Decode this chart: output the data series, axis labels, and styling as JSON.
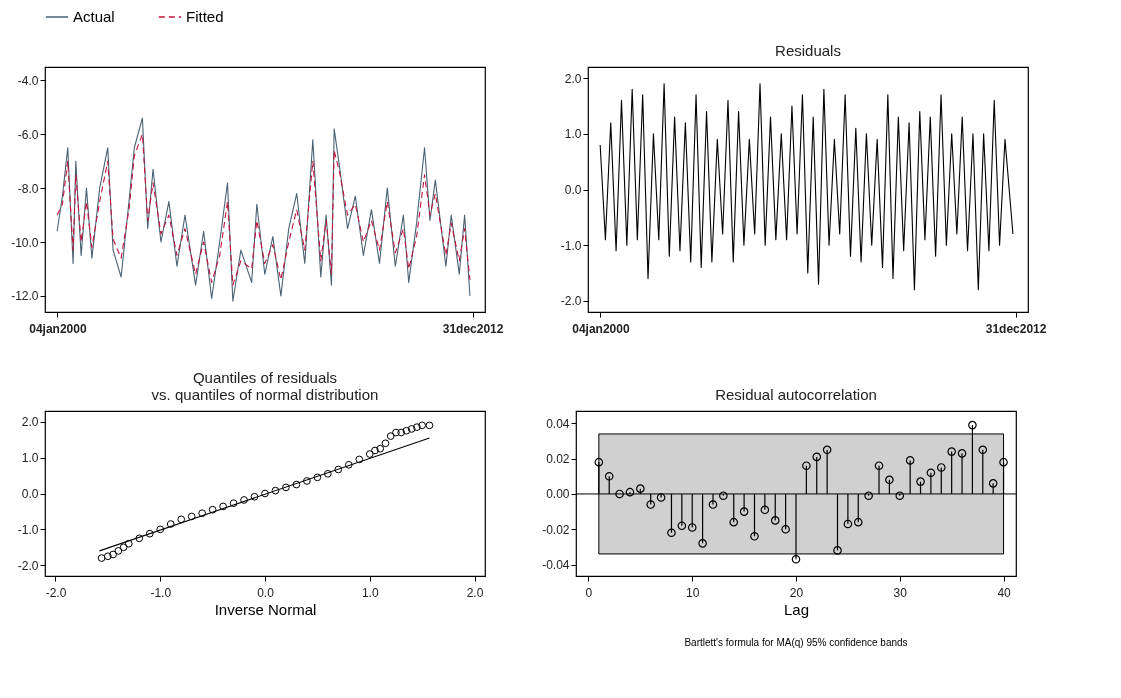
{
  "chart_data": [
    {
      "type": "line",
      "legend": "top",
      "grid": false,
      "xlim": [
        "1999-08-15",
        "2013-05-22"
      ],
      "xticks": [
        {
          "value": "2000-01-04",
          "label": "04jan2000"
        },
        {
          "value": "2012-12-31",
          "label": "31dec2012"
        }
      ],
      "ylim": [
        -12.6,
        -3.5
      ],
      "yticks": [
        {
          "value": -12,
          "label": "-12.0"
        },
        {
          "value": -10,
          "label": "-10.0"
        },
        {
          "value": -8,
          "label": "-8.0"
        },
        {
          "value": -6,
          "label": "-6.0"
        },
        {
          "value": -4,
          "label": "-4.0"
        }
      ],
      "x": [
        "2000-01",
        "2000-03",
        "2000-05",
        "2000-07",
        "2000-08",
        "2000-10",
        "2000-12",
        "2001-02",
        "2001-05",
        "2001-08",
        "2001-10",
        "2002-01",
        "2002-04",
        "2002-06",
        "2002-09",
        "2002-11",
        "2003-01",
        "2003-04",
        "2003-07",
        "2003-10",
        "2004-01",
        "2004-05",
        "2004-08",
        "2004-11",
        "2005-02",
        "2005-05",
        "2005-07",
        "2005-10",
        "2006-02",
        "2006-04",
        "2006-07",
        "2006-10",
        "2007-01",
        "2007-04",
        "2007-07",
        "2007-10",
        "2008-01",
        "2008-04",
        "2008-06",
        "2008-08",
        "2008-09",
        "2008-11",
        "2009-02",
        "2009-05",
        "2009-08",
        "2009-11",
        "2010-02",
        "2010-05",
        "2010-08",
        "2010-11",
        "2011-01",
        "2011-04",
        "2011-07",
        "2011-09",
        "2011-11",
        "2012-03",
        "2012-05",
        "2012-08",
        "2012-10",
        "2012-12"
      ],
      "series": [
        {
          "name": "Actual",
          "color": "#4b6273",
          "line_style": "solid",
          "values": [
            -9.6,
            -8.3,
            -6.5,
            -10.8,
            -7.0,
            -10.5,
            -8.0,
            -10.6,
            -8.0,
            -6.5,
            -10.3,
            -11.3,
            -8.5,
            -6.5,
            -5.4,
            -9.5,
            -7.3,
            -10.0,
            -8.5,
            -10.9,
            -9.0,
            -11.6,
            -9.6,
            -12.1,
            -10.0,
            -7.8,
            -12.2,
            -10.3,
            -11.5,
            -8.6,
            -11.2,
            -9.8,
            -12.0,
            -9.5,
            -8.2,
            -10.8,
            -6.2,
            -11.3,
            -9.0,
            -11.6,
            -5.8,
            -7.2,
            -9.5,
            -8.3,
            -10.5,
            -8.8,
            -10.8,
            -8.0,
            -10.9,
            -9.0,
            -11.5,
            -9.3,
            -6.5,
            -9.2,
            -7.7,
            -10.9,
            -9.0,
            -11.2,
            -9.0,
            -12.0
          ]
        },
        {
          "name": "Fitted",
          "color": "#c0143c",
          "line_style": "dashed",
          "values": [
            -9.0,
            -8.6,
            -7.0,
            -10.3,
            -7.5,
            -10.0,
            -8.5,
            -10.2,
            -8.5,
            -7.0,
            -9.9,
            -10.6,
            -8.8,
            -6.8,
            -6.0,
            -9.2,
            -7.8,
            -9.7,
            -9.0,
            -10.5,
            -9.5,
            -11.2,
            -10.0,
            -11.5,
            -10.5,
            -8.5,
            -11.6,
            -10.7,
            -11.0,
            -9.2,
            -10.8,
            -10.1,
            -11.4,
            -10.0,
            -8.8,
            -10.3,
            -7.0,
            -10.7,
            -9.2,
            -11.2,
            -6.6,
            -7.4,
            -9.0,
            -8.6,
            -10.0,
            -9.2,
            -10.3,
            -8.5,
            -10.4,
            -9.5,
            -11.0,
            -9.8,
            -7.5,
            -9.0,
            -8.2,
            -10.5,
            -9.3,
            -10.7,
            -9.5,
            -11.4
          ]
        }
      ]
    },
    {
      "type": "line",
      "title": "Residuals",
      "grid": false,
      "xlim": [
        "1999-08-15",
        "2013-05-22"
      ],
      "xticks": [
        {
          "value": "2000-01-04",
          "label": "04jan2000"
        },
        {
          "value": "2012-12-31",
          "label": "31dec2012"
        }
      ],
      "ylim": [
        -2.2,
        2.2
      ],
      "yticks": [
        {
          "value": -2,
          "label": "-2.0"
        },
        {
          "value": -1,
          "label": "-1.0"
        },
        {
          "value": 0,
          "label": "0.0"
        },
        {
          "value": 1,
          "label": "1.0"
        },
        {
          "value": 2,
          "label": "2.0"
        }
      ],
      "x": [
        "2000-01",
        "2000-03",
        "2000-05",
        "2000-07",
        "2000-09",
        "2000-11",
        "2001-01",
        "2001-03",
        "2001-05",
        "2001-07",
        "2001-09",
        "2001-11",
        "2002-01",
        "2002-03",
        "2002-05",
        "2002-07",
        "2002-09",
        "2002-11",
        "2003-01",
        "2003-03",
        "2003-05",
        "2003-07",
        "2003-09",
        "2003-11",
        "2004-01",
        "2004-03",
        "2004-05",
        "2004-07",
        "2004-09",
        "2004-11",
        "2005-01",
        "2005-03",
        "2005-05",
        "2005-07",
        "2005-09",
        "2005-11",
        "2006-01",
        "2006-03",
        "2006-05",
        "2006-07",
        "2006-09",
        "2006-11",
        "2007-01",
        "2007-03",
        "2007-05",
        "2007-07",
        "2007-09",
        "2007-11",
        "2008-01",
        "2008-03",
        "2008-05",
        "2008-07",
        "2008-09",
        "2008-11",
        "2009-01",
        "2009-03",
        "2009-05",
        "2009-07",
        "2009-09",
        "2009-11",
        "2010-01",
        "2010-03",
        "2010-05",
        "2010-07",
        "2010-09",
        "2010-11",
        "2011-01",
        "2011-03",
        "2011-05",
        "2011-07",
        "2011-09",
        "2011-11",
        "2012-01",
        "2012-03",
        "2012-05",
        "2012-07",
        "2012-09",
        "2012-12"
      ],
      "series": [
        {
          "color": "#000000",
          "values": [
            0.8,
            -0.9,
            1.2,
            -1.1,
            1.6,
            -1.0,
            1.8,
            -0.9,
            1.7,
            -1.6,
            1.0,
            -0.9,
            1.9,
            -1.2,
            1.3,
            -1.1,
            1.2,
            -1.3,
            1.7,
            -1.4,
            1.4,
            -1.3,
            0.9,
            -0.8,
            1.6,
            -1.3,
            1.4,
            -1.0,
            0.9,
            -0.8,
            1.9,
            -1.0,
            1.3,
            -0.9,
            1.0,
            -0.9,
            1.5,
            -0.8,
            1.7,
            -1.5,
            1.3,
            -1.7,
            1.8,
            -1.0,
            0.9,
            -0.8,
            1.7,
            -1.2,
            1.1,
            -1.3,
            1.0,
            -1.0,
            0.9,
            -1.4,
            1.7,
            -1.6,
            1.3,
            -1.1,
            1.2,
            -1.8,
            1.4,
            -0.9,
            1.3,
            -1.2,
            1.7,
            -1.0,
            1.0,
            -0.8,
            1.3,
            -1.1,
            1.0,
            -1.8,
            1.0,
            -1.1,
            1.6,
            -1.0,
            0.9,
            -0.8
          ]
        }
      ]
    },
    {
      "type": "scatter",
      "title": "Quantiles of residuals\nvs. quantiles of normal distribution",
      "xlabel": "Inverse Normal",
      "grid": false,
      "xlim": [
        -2.1,
        2.1
      ],
      "xticks": [
        {
          "value": -2,
          "label": "-2.0"
        },
        {
          "value": -1,
          "label": "-1.0"
        },
        {
          "value": 0,
          "label": "0.0"
        },
        {
          "value": 1,
          "label": "1.0"
        },
        {
          "value": 2,
          "label": "2.0"
        }
      ],
      "ylim": [
        -2.3,
        2.3
      ],
      "yticks": [
        {
          "value": -2,
          "label": "-2.0"
        },
        {
          "value": -1,
          "label": "-1.0"
        },
        {
          "value": 0,
          "label": "0.0"
        },
        {
          "value": 1,
          "label": "1.0"
        },
        {
          "value": 2,
          "label": "2.0"
        }
      ],
      "series": [
        {
          "type": "scatter",
          "color": "#000000",
          "marker": "circle",
          "x": [
            -1.56,
            -1.5,
            -1.45,
            -1.4,
            -1.35,
            -1.3,
            -1.2,
            -1.1,
            -1.0,
            -0.9,
            -0.8,
            -0.7,
            -0.6,
            -0.5,
            -0.4,
            -0.3,
            -0.2,
            -0.1,
            0.0,
            0.1,
            0.2,
            0.3,
            0.4,
            0.5,
            0.6,
            0.7,
            0.8,
            0.9,
            1.0,
            1.05,
            1.1,
            1.15,
            1.2,
            1.25,
            1.3,
            1.35,
            1.4,
            1.45,
            1.5,
            1.57
          ],
          "values": [
            -1.8,
            -1.75,
            -1.7,
            -1.6,
            -1.5,
            -1.4,
            -1.25,
            -1.12,
            -1.0,
            -0.85,
            -0.72,
            -0.64,
            -0.55,
            -0.45,
            -0.36,
            -0.27,
            -0.18,
            -0.09,
            0.0,
            0.08,
            0.17,
            0.25,
            0.35,
            0.45,
            0.55,
            0.67,
            0.8,
            0.95,
            1.1,
            1.2,
            1.25,
            1.4,
            1.6,
            1.7,
            1.7,
            1.75,
            1.8,
            1.85,
            1.9,
            1.9
          ]
        },
        {
          "type": "line",
          "color": "#000000",
          "marker": "none",
          "x": [
            -1.58,
            1.57
          ],
          "values": [
            -1.6,
            1.55
          ]
        }
      ]
    },
    {
      "type": "lollipop",
      "title": "Residual autocorrelation",
      "xlabel": "Lag",
      "grid": false,
      "marker": "circle",
      "xlim": [
        -1.2,
        41.2
      ],
      "xticks": [
        0,
        10,
        20,
        30,
        40
      ],
      "ylim": [
        -0.0465,
        0.047
      ],
      "yticks": [
        -0.04,
        -0.02,
        {
          "value": 0,
          "label": "0.00"
        },
        0.02,
        0.04
      ],
      "bands": [
        {
          "axis": "y",
          "from": -0.034,
          "to": 0.034,
          "color": "#d0d0d0"
        }
      ],
      "ref_lines": [
        {
          "axis": "y",
          "value": 0
        }
      ],
      "annotations": [
        "Bartlett's formula for MA(q) 95% confidence bands"
      ],
      "x": [
        1,
        2,
        3,
        4,
        5,
        6,
        7,
        8,
        9,
        10,
        11,
        12,
        13,
        14,
        15,
        16,
        17,
        18,
        19,
        20,
        21,
        22,
        23,
        24,
        25,
        26,
        27,
        28,
        29,
        30,
        31,
        32,
        33,
        34,
        35,
        36,
        37,
        38,
        39,
        40
      ],
      "series": [
        {
          "color": "#000000",
          "values": [
            0.018,
            0.01,
            0.0,
            0.001,
            0.003,
            -0.006,
            -0.002,
            -0.022,
            -0.018,
            -0.019,
            -0.028,
            -0.006,
            -0.001,
            -0.016,
            -0.01,
            -0.024,
            -0.009,
            -0.015,
            -0.02,
            -0.037,
            0.016,
            0.021,
            0.025,
            -0.032,
            -0.017,
            -0.016,
            -0.001,
            0.016,
            0.008,
            -0.001,
            0.019,
            0.007,
            0.012,
            0.015,
            0.024,
            0.023,
            0.039,
            0.025,
            0.006,
            0.018
          ]
        }
      ]
    }
  ]
}
